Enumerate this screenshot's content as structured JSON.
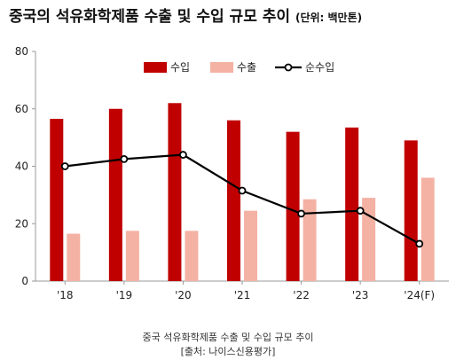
{
  "title": "중국의 석유화학제품 수출 및 수입 규모 추이",
  "unit_note": "(단위: 백만톤)",
  "caption": "중국 석유화학제품 수출 및 수입 규모 추이",
  "source": "[출처: 나이스신용평가]",
  "colors": {
    "import": "#c00000",
    "export": "#f4b2a4",
    "net": "#000000"
  },
  "chart_data": {
    "type": "bar",
    "categories": [
      "'18",
      "'19",
      "'20",
      "'21",
      "'22",
      "'23",
      "'24(F)"
    ],
    "series": [
      {
        "name": "수입",
        "type": "bar",
        "values": [
          56.5,
          60,
          62,
          56,
          52,
          53.5,
          49
        ]
      },
      {
        "name": "수출",
        "type": "bar",
        "values": [
          16.5,
          17.5,
          17.5,
          24.5,
          28.5,
          29,
          36
        ]
      },
      {
        "name": "순수입",
        "type": "line",
        "values": [
          40,
          42.5,
          44,
          31.5,
          23.5,
          24.5,
          13
        ]
      }
    ],
    "ylim": [
      0,
      80
    ],
    "yticks": [
      "0",
      "20",
      "40",
      "60",
      "80"
    ],
    "xlabel": "",
    "ylabel": "",
    "legend_position": "top-center",
    "grid": false
  }
}
